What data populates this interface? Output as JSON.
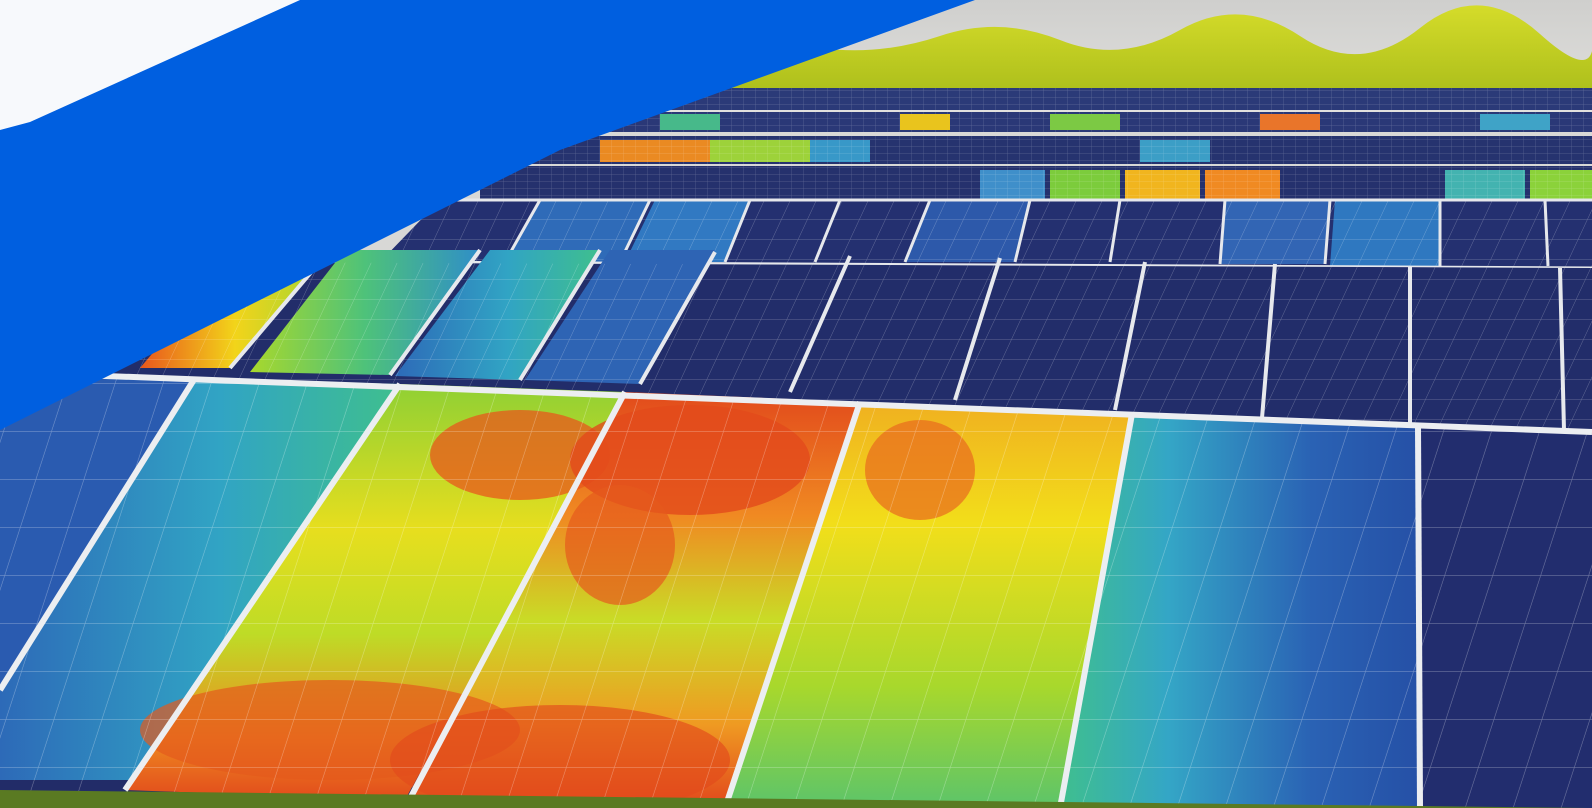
{
  "colors": {
    "banner_blue": "#005fe0",
    "page_white": "#f7f9fc",
    "sky": "#d9d8d6",
    "tree_line": "#c5d21a",
    "panel_cell": "#23306b",
    "panel_frame": "#e4e6ea",
    "grass": "#5f7d22"
  },
  "thermal_scale": [
    "#1f4fa0",
    "#2f9ad0",
    "#49c27a",
    "#b8dc23",
    "#f2de1a",
    "#f29a22",
    "#e2451c"
  ],
  "icons": [
    "solar-panel-icon",
    "thermal-heatmap-icon"
  ]
}
